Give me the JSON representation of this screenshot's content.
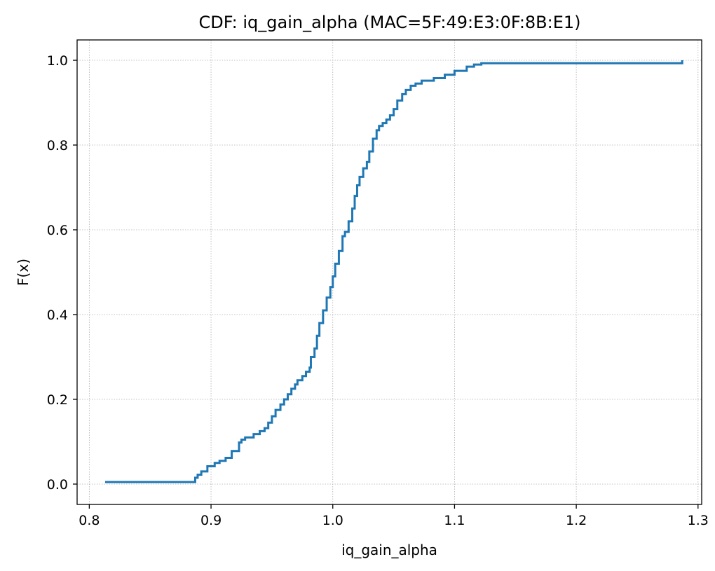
{
  "chart_data": {
    "type": "line",
    "title": "CDF: iq_gain_alpha (MAC=5F:49:E3:0F:8B:E1)",
    "xlabel": "iq_gain_alpha",
    "ylabel": "F(x)",
    "xlim": [
      0.79,
      1.303
    ],
    "ylim": [
      -0.048,
      1.048
    ],
    "xticks": [
      0.8,
      0.9,
      1.0,
      1.1,
      1.2,
      1.3
    ],
    "xtick_labels": [
      "0.8",
      "0.9",
      "1.0",
      "1.1",
      "1.2",
      "1.3"
    ],
    "yticks": [
      0.0,
      0.2,
      0.4,
      0.6,
      0.8,
      1.0
    ],
    "ytick_labels": [
      "0.0",
      "0.2",
      "0.4",
      "0.6",
      "0.8",
      "1.0"
    ],
    "grid": true,
    "line_color": "#1f77b4",
    "series": [
      {
        "x": [
          0.813,
          0.887,
          0.889,
          0.892,
          0.897,
          0.903,
          0.907,
          0.912,
          0.917,
          0.923,
          0.925,
          0.928,
          0.935,
          0.94,
          0.944,
          0.947,
          0.95,
          0.953,
          0.957,
          0.96,
          0.963,
          0.966,
          0.969,
          0.971,
          0.975,
          0.978,
          0.981,
          0.982,
          0.985,
          0.987,
          0.989,
          0.992,
          0.995,
          0.998,
          1.0,
          1.002,
          1.005,
          1.008,
          1.01,
          1.013,
          1.016,
          1.018,
          1.02,
          1.022,
          1.025,
          1.028,
          1.03,
          1.033,
          1.036,
          1.038,
          1.041,
          1.044,
          1.047,
          1.05,
          1.053,
          1.057,
          1.06,
          1.064,
          1.068,
          1.073,
          1.083,
          1.092,
          1.1,
          1.11,
          1.116,
          1.122,
          1.18,
          1.25,
          1.287
        ],
        "y": [
          0.005,
          0.015,
          0.022,
          0.03,
          0.042,
          0.05,
          0.055,
          0.062,
          0.078,
          0.098,
          0.105,
          0.11,
          0.118,
          0.125,
          0.132,
          0.145,
          0.16,
          0.175,
          0.188,
          0.2,
          0.212,
          0.225,
          0.235,
          0.245,
          0.255,
          0.265,
          0.275,
          0.3,
          0.32,
          0.35,
          0.38,
          0.41,
          0.44,
          0.465,
          0.49,
          0.52,
          0.55,
          0.585,
          0.595,
          0.62,
          0.65,
          0.68,
          0.705,
          0.725,
          0.745,
          0.76,
          0.785,
          0.815,
          0.835,
          0.845,
          0.852,
          0.86,
          0.87,
          0.885,
          0.905,
          0.92,
          0.93,
          0.94,
          0.945,
          0.952,
          0.958,
          0.966,
          0.975,
          0.985,
          0.99,
          0.993,
          0.993,
          0.993,
          1.0
        ]
      }
    ]
  }
}
